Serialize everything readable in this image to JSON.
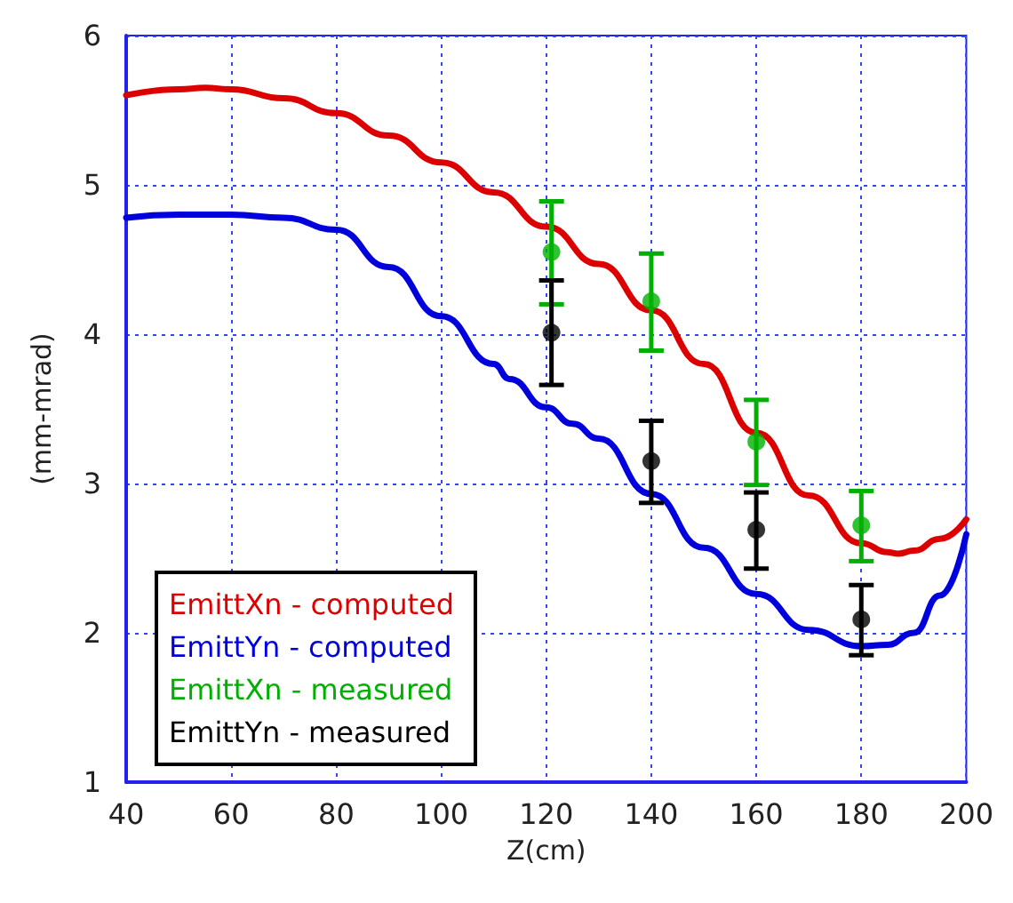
{
  "chart_data": {
    "type": "line",
    "xlabel": "Z(cm)",
    "ylabel": "(mm-mrad)",
    "xlim": [
      40,
      200
    ],
    "xticks": [
      40,
      60,
      80,
      100,
      120,
      140,
      160,
      180,
      200
    ],
    "ylim": [
      1,
      6
    ],
    "yticks": [
      1,
      2,
      3,
      4,
      5,
      6
    ],
    "grid": true,
    "legend": "bottom left",
    "series": [
      {
        "name": "EmittXn - computed",
        "color": "#dd0000",
        "marker": "none",
        "x": [
          40,
          50,
          55,
          60,
          70,
          80,
          90,
          100,
          110,
          120,
          130,
          140,
          150,
          160,
          170,
          180,
          185,
          187,
          190,
          195,
          200
        ],
        "values": [
          5.6,
          5.64,
          5.65,
          5.64,
          5.58,
          5.48,
          5.33,
          5.15,
          4.95,
          4.72,
          4.47,
          4.16,
          3.8,
          3.34,
          2.92,
          2.6,
          2.54,
          2.53,
          2.55,
          2.63,
          2.76
        ]
      },
      {
        "name": "EmittYn - computed",
        "color": "#0000dd",
        "marker": "none",
        "x": [
          40,
          50,
          60,
          70,
          80,
          90,
          100,
          110,
          113,
          120,
          125,
          130,
          140,
          150,
          160,
          170,
          180,
          185,
          190,
          195,
          200
        ],
        "values": [
          4.78,
          4.8,
          4.8,
          4.78,
          4.7,
          4.45,
          4.12,
          3.8,
          3.7,
          3.51,
          3.4,
          3.3,
          2.93,
          2.57,
          2.26,
          2.02,
          1.91,
          1.92,
          2.0,
          2.25,
          2.66
        ]
      },
      {
        "name": "EmittXn - measured",
        "type": "scatter",
        "color": "#00b000",
        "marker": "circle",
        "x": [
          121,
          140,
          160,
          180
        ],
        "values": [
          4.55,
          4.22,
          3.28,
          2.72
        ],
        "errors": [
          [
            4.2,
            4.89
          ],
          [
            3.89,
            4.54
          ],
          [
            2.99,
            3.56
          ],
          [
            2.48,
            2.95
          ]
        ]
      },
      {
        "name": "EmittYn - measured",
        "type": "scatter",
        "color": "#000000",
        "marker": "circle",
        "x": [
          121,
          140,
          160,
          180
        ],
        "values": [
          4.01,
          3.15,
          2.69,
          2.09
        ],
        "errors": [
          [
            3.66,
            4.36
          ],
          [
            2.87,
            3.42
          ],
          [
            2.43,
            2.94
          ],
          [
            1.85,
            2.32
          ]
        ]
      }
    ]
  }
}
